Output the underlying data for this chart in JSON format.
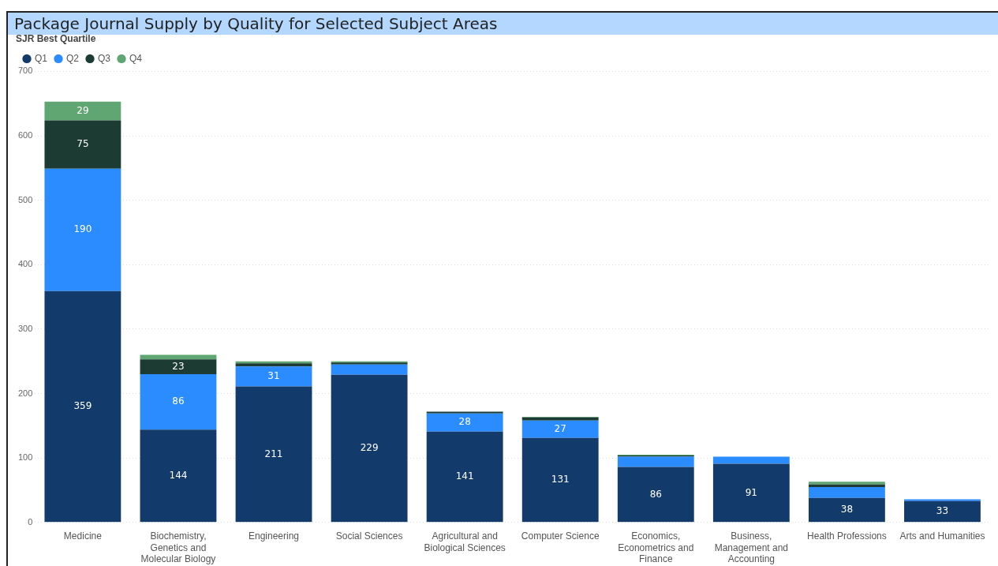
{
  "chart_data": {
    "type": "bar",
    "title": "Package Journal Supply by Quality for Selected Subject Areas",
    "legend_title": "SJR Best Quartile",
    "stacked": true,
    "legend": "top left",
    "grid": "y",
    "categories": [
      "Medicine",
      "Biochemistry, Genetics and Molecular Biology",
      "Engineering",
      "Social Sciences",
      "Agricultural and Biological Sciences",
      "Computer Science",
      "Economics, Econometrics and Finance",
      "Business, Management and Accounting",
      "Health Professions",
      "Arts and Humanities"
    ],
    "ylim": [
      0,
      700
    ],
    "yticks": [
      0,
      100,
      200,
      300,
      400,
      500,
      600,
      700
    ],
    "series": [
      {
        "name": "Q1",
        "color": "#123a6b",
        "values": [
          359,
          144,
          211,
          229,
          141,
          131,
          86,
          91,
          38,
          33
        ],
        "value_labels": [
          "359",
          "144",
          "211",
          "229",
          "141",
          "131",
          "86",
          "91",
          "38",
          "33"
        ]
      },
      {
        "name": "Q2",
        "color": "#2b8cff",
        "values": [
          190,
          86,
          31,
          16,
          28,
          27,
          16,
          11,
          17,
          3
        ],
        "value_labels": [
          "190",
          "86",
          "31",
          null,
          "28",
          "27",
          null,
          null,
          null,
          null
        ]
      },
      {
        "name": "Q3",
        "color": "#1b3b33",
        "values": [
          75,
          23,
          5,
          3,
          3,
          5,
          2,
          null,
          4,
          null
        ],
        "value_labels": [
          "75",
          "23",
          null,
          null,
          null,
          null,
          null,
          null,
          null,
          null
        ]
      },
      {
        "name": "Q4",
        "color": "#5fa673",
        "values": [
          29,
          7,
          3,
          2,
          null,
          1,
          1,
          0,
          4,
          0
        ],
        "value_labels": [
          "29",
          null,
          null,
          null,
          null,
          null,
          null,
          null,
          null,
          null
        ]
      }
    ]
  }
}
